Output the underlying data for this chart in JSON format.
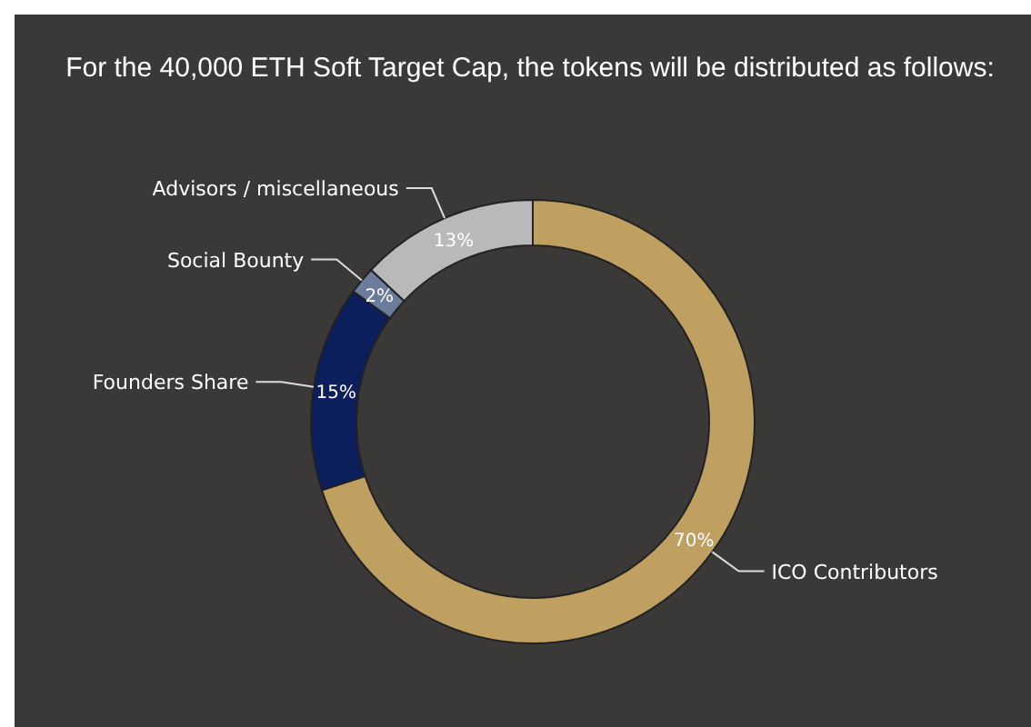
{
  "chart_data": {
    "type": "donut",
    "title": "For the 40,000 ETH Soft Target Cap, the tokens will be distributed as follows:",
    "categories": [
      "ICO Contributors",
      "Founders Share",
      "Social Bounty",
      "Advisors / miscellaneous"
    ],
    "values": [
      70,
      15,
      2,
      13
    ],
    "colors": [
      "#c0a060",
      "#0c1e5c",
      "#6c7c9c",
      "#b9b9b9"
    ],
    "value_labels": [
      "70%",
      "15%",
      "2%",
      "13%"
    ],
    "legend": false
  }
}
